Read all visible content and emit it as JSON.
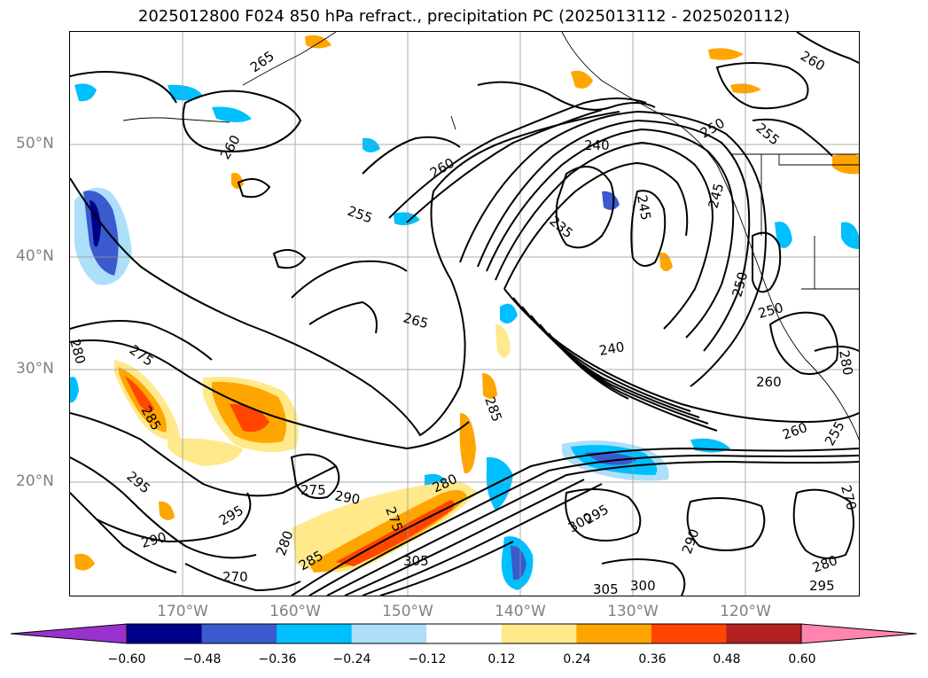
{
  "title": "2025012800 F024 850 hPa refract., precipitation PC (2025013112 - 2025020112)",
  "lat_labels": [
    "50°N",
    "40°N",
    "30°N",
    "20°N"
  ],
  "lon_labels": [
    "170°W",
    "160°W",
    "150°W",
    "140°W",
    "130°W",
    "120°W"
  ],
  "colorbar": {
    "tick_labels": [
      "−0.60",
      "−0.48",
      "−0.36",
      "−0.24",
      "−0.12",
      "0.12",
      "0.24",
      "0.36",
      "0.48",
      "0.60"
    ],
    "colors": [
      "#9932CC",
      "#00008B",
      "#3A5ACD",
      "#00BFFF",
      "#ADDFFA",
      "#FFFFFF",
      "#FFE98A",
      "#FFA500",
      "#FF4500",
      "#B22222",
      "#FF85B0"
    ]
  },
  "contour_labels": [
    "265",
    "260",
    "260",
    "255",
    "265",
    "280",
    "275",
    "285",
    "295",
    "295",
    "290",
    "275",
    "290",
    "270",
    "280",
    "285",
    "275",
    "280",
    "305",
    "285",
    "300",
    "295",
    "305",
    "300",
    "290",
    "280",
    "295",
    "270",
    "260",
    "260",
    "255",
    "250",
    "250",
    "245",
    "245",
    "240",
    "240",
    "235",
    "250",
    "255",
    "260",
    "280"
  ]
}
